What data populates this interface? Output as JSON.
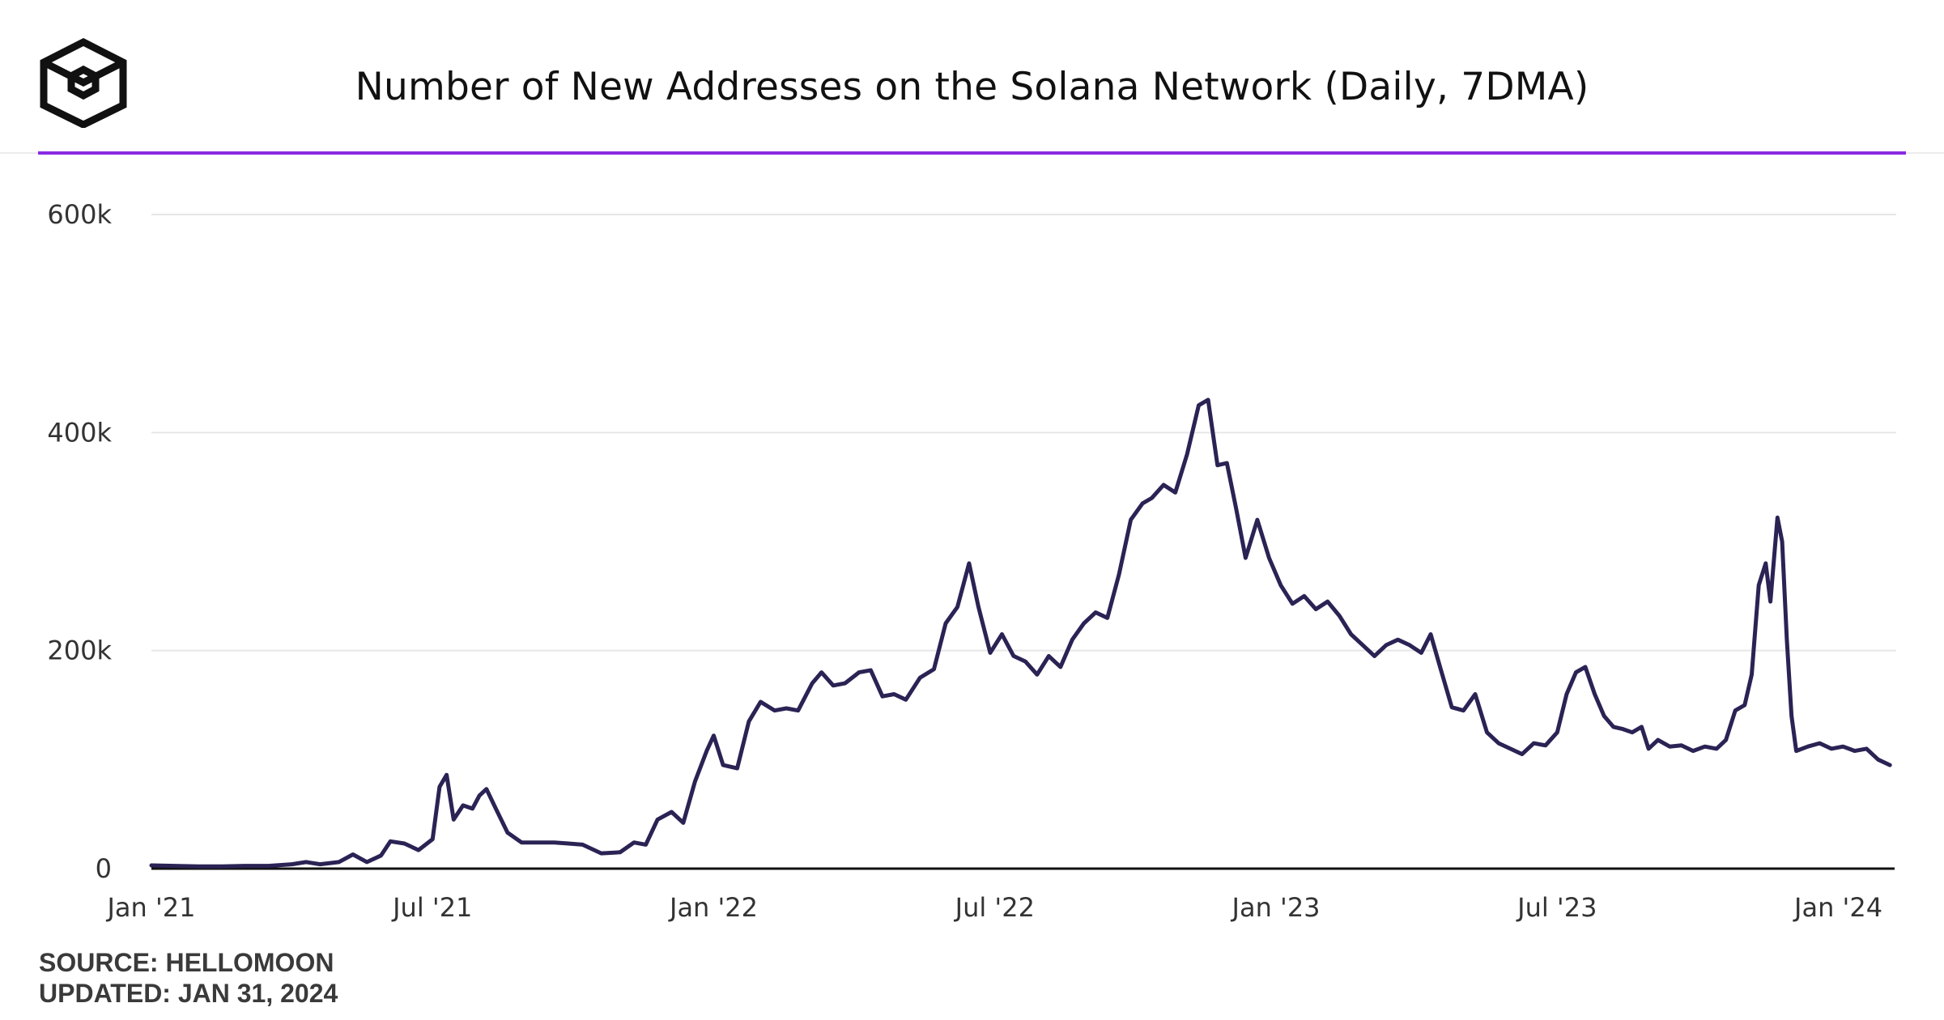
{
  "header": {
    "logo_icon": "box-logo-icon"
  },
  "colors": {
    "accent": "#8a2be2",
    "line": "#2a2354",
    "grid": "#e6e6e6",
    "axis": "#111111"
  },
  "footer": {
    "source": "SOURCE: HELLOMOON",
    "updated": "UPDATED: JAN 31, 2024"
  },
  "chart_data": {
    "type": "line",
    "title": "Number of New Addresses on the Solana Network (Daily, 7DMA)",
    "xlabel": "",
    "ylabel": "",
    "ylim": [
      0,
      600000
    ],
    "xlim": [
      0,
      37.2
    ],
    "x_unit": "months since Jan 2021",
    "yticks": [
      {
        "value": 0,
        "label": "0"
      },
      {
        "value": 200000,
        "label": "200k"
      },
      {
        "value": 400000,
        "label": "400k"
      },
      {
        "value": 600000,
        "label": "600k"
      }
    ],
    "xticks": [
      {
        "value": 0,
        "label": "Jan '21"
      },
      {
        "value": 6,
        "label": "Jul '21"
      },
      {
        "value": 12,
        "label": "Jan '22"
      },
      {
        "value": 18,
        "label": "Jul '22"
      },
      {
        "value": 24,
        "label": "Jan '23"
      },
      {
        "value": 30,
        "label": "Jul '23"
      },
      {
        "value": 36,
        "label": "Jan '24"
      }
    ],
    "grid": true,
    "series": [
      {
        "name": "New Addresses (7DMA)",
        "points": [
          [
            0.0,
            3000
          ],
          [
            0.5,
            2500
          ],
          [
            1.0,
            2000
          ],
          [
            1.5,
            2000
          ],
          [
            2.0,
            2500
          ],
          [
            2.5,
            2500
          ],
          [
            3.0,
            4000
          ],
          [
            3.3,
            6000
          ],
          [
            3.6,
            4000
          ],
          [
            4.0,
            6000
          ],
          [
            4.3,
            13000
          ],
          [
            4.6,
            6000
          ],
          [
            4.9,
            12000
          ],
          [
            5.1,
            25000
          ],
          [
            5.4,
            23000
          ],
          [
            5.7,
            17000
          ],
          [
            6.0,
            27000
          ],
          [
            6.15,
            75000
          ],
          [
            6.3,
            86000
          ],
          [
            6.45,
            45000
          ],
          [
            6.65,
            58000
          ],
          [
            6.85,
            55000
          ],
          [
            7.0,
            67000
          ],
          [
            7.15,
            73000
          ],
          [
            7.35,
            55000
          ],
          [
            7.6,
            33000
          ],
          [
            7.9,
            24000
          ],
          [
            8.3,
            24000
          ],
          [
            8.6,
            24000
          ],
          [
            8.9,
            23000
          ],
          [
            9.2,
            22000
          ],
          [
            9.6,
            14000
          ],
          [
            10.0,
            15000
          ],
          [
            10.3,
            24000
          ],
          [
            10.55,
            22000
          ],
          [
            10.8,
            45000
          ],
          [
            11.1,
            52000
          ],
          [
            11.35,
            42000
          ],
          [
            11.6,
            80000
          ],
          [
            11.85,
            108000
          ],
          [
            12.0,
            122000
          ],
          [
            12.2,
            95000
          ],
          [
            12.5,
            92000
          ],
          [
            12.75,
            135000
          ],
          [
            13.0,
            153000
          ],
          [
            13.3,
            145000
          ],
          [
            13.55,
            147000
          ],
          [
            13.8,
            145000
          ],
          [
            14.1,
            170000
          ],
          [
            14.3,
            180000
          ],
          [
            14.55,
            168000
          ],
          [
            14.8,
            170000
          ],
          [
            15.1,
            180000
          ],
          [
            15.35,
            182000
          ],
          [
            15.6,
            158000
          ],
          [
            15.85,
            160000
          ],
          [
            16.1,
            155000
          ],
          [
            16.4,
            175000
          ],
          [
            16.7,
            183000
          ],
          [
            16.95,
            225000
          ],
          [
            17.2,
            240000
          ],
          [
            17.45,
            280000
          ],
          [
            17.65,
            240000
          ],
          [
            17.9,
            198000
          ],
          [
            18.15,
            215000
          ],
          [
            18.4,
            195000
          ],
          [
            18.65,
            190000
          ],
          [
            18.9,
            178000
          ],
          [
            19.15,
            195000
          ],
          [
            19.4,
            185000
          ],
          [
            19.65,
            210000
          ],
          [
            19.9,
            225000
          ],
          [
            20.15,
            235000
          ],
          [
            20.4,
            230000
          ],
          [
            20.65,
            270000
          ],
          [
            20.9,
            320000
          ],
          [
            21.15,
            335000
          ],
          [
            21.35,
            340000
          ],
          [
            21.6,
            352000
          ],
          [
            21.85,
            345000
          ],
          [
            22.1,
            380000
          ],
          [
            22.35,
            425000
          ],
          [
            22.55,
            430000
          ],
          [
            22.75,
            370000
          ],
          [
            22.95,
            372000
          ],
          [
            23.15,
            330000
          ],
          [
            23.35,
            285000
          ],
          [
            23.6,
            320000
          ],
          [
            23.85,
            285000
          ],
          [
            24.1,
            260000
          ],
          [
            24.35,
            243000
          ],
          [
            24.6,
            250000
          ],
          [
            24.85,
            238000
          ],
          [
            25.1,
            245000
          ],
          [
            25.35,
            232000
          ],
          [
            25.6,
            215000
          ],
          [
            25.85,
            205000
          ],
          [
            26.1,
            195000
          ],
          [
            26.35,
            205000
          ],
          [
            26.6,
            210000
          ],
          [
            26.85,
            205000
          ],
          [
            27.1,
            198000
          ],
          [
            27.3,
            215000
          ],
          [
            27.5,
            185000
          ],
          [
            27.75,
            148000
          ],
          [
            28.0,
            145000
          ],
          [
            28.25,
            160000
          ],
          [
            28.5,
            125000
          ],
          [
            28.75,
            115000
          ],
          [
            29.0,
            110000
          ],
          [
            29.25,
            105000
          ],
          [
            29.5,
            115000
          ],
          [
            29.75,
            113000
          ],
          [
            30.0,
            125000
          ],
          [
            30.2,
            160000
          ],
          [
            30.4,
            180000
          ],
          [
            30.6,
            185000
          ],
          [
            30.8,
            160000
          ],
          [
            31.0,
            140000
          ],
          [
            31.2,
            130000
          ],
          [
            31.4,
            128000
          ],
          [
            31.6,
            125000
          ],
          [
            31.8,
            130000
          ],
          [
            31.95,
            110000
          ],
          [
            32.15,
            118000
          ],
          [
            32.4,
            112000
          ],
          [
            32.65,
            113000
          ],
          [
            32.9,
            108000
          ],
          [
            33.15,
            112000
          ],
          [
            33.4,
            110000
          ],
          [
            33.6,
            118000
          ],
          [
            33.8,
            145000
          ],
          [
            34.0,
            150000
          ],
          [
            34.15,
            178000
          ],
          [
            34.3,
            260000
          ],
          [
            34.45,
            280000
          ],
          [
            34.55,
            245000
          ],
          [
            34.7,
            322000
          ],
          [
            34.8,
            300000
          ],
          [
            34.9,
            210000
          ],
          [
            35.0,
            140000
          ],
          [
            35.1,
            108000
          ],
          [
            35.35,
            112000
          ],
          [
            35.6,
            115000
          ],
          [
            35.85,
            110000
          ],
          [
            36.1,
            112000
          ],
          [
            36.35,
            108000
          ],
          [
            36.6,
            110000
          ],
          [
            36.85,
            100000
          ],
          [
            37.1,
            95000
          ]
        ]
      }
    ]
  }
}
